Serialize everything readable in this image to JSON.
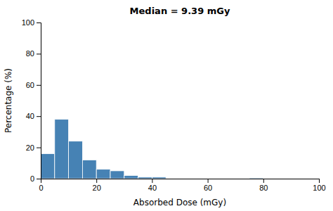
{
  "chart_data": {
    "type": "histogram",
    "title": "Median = 9.39 mGy",
    "xlabel": "Absorbed Dose (mGy)",
    "ylabel": "Percentage (%)",
    "bins": [
      0,
      5,
      10,
      15,
      20,
      25,
      30,
      35,
      40,
      45,
      50,
      55,
      60,
      65,
      70,
      75,
      80,
      85,
      90,
      95,
      100
    ],
    "values": [
      16,
      38,
      24,
      12,
      6,
      5,
      2,
      1,
      1,
      0,
      0,
      0,
      0,
      0,
      0,
      0.5,
      0,
      0,
      0,
      0
    ],
    "xlim": [
      0,
      100
    ],
    "ylim": [
      0,
      100
    ],
    "xticks": [
      0,
      20,
      40,
      60,
      80,
      100
    ],
    "yticks": [
      0,
      20,
      40,
      60,
      80,
      100
    ]
  }
}
